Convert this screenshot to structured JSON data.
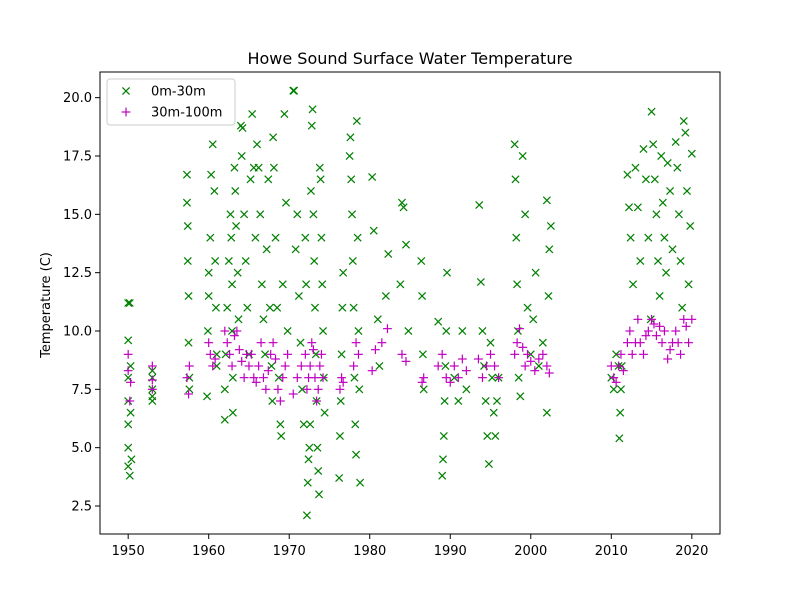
{
  "chart_data": {
    "type": "scatter",
    "title": "Howe Sound Surface Water Temperature",
    "xlabel": "",
    "ylabel": "Temperature (C)",
    "xlim": [
      1946.5,
      2023.5
    ],
    "ylim": [
      1.3,
      21.1
    ],
    "xticks": [
      1950,
      1960,
      1970,
      1980,
      1990,
      2000,
      2010,
      2020
    ],
    "yticks": [
      2.5,
      5.0,
      7.5,
      10.0,
      12.5,
      15.0,
      17.5,
      20.0
    ],
    "xtick_labels": [
      "1950",
      "1960",
      "1970",
      "1980",
      "1990",
      "2000",
      "2010",
      "2020"
    ],
    "ytick_labels": [
      "2.5",
      "5.0",
      "7.5",
      "10.0",
      "12.5",
      "15.0",
      "17.5",
      "20.0"
    ],
    "grid": false,
    "legend_position": "top-left",
    "series": [
      {
        "name": "0m-30m",
        "marker": "x",
        "color": "#008000",
        "x": [
          1950,
          1950,
          1950,
          1950,
          1950,
          1950,
          1950,
          1950.2,
          1950.2,
          1950.3,
          1950.3,
          1950.4,
          1953,
          1953,
          1953,
          1953,
          1953,
          1957.3,
          1957.3,
          1957.4,
          1957.4,
          1957.5,
          1957.5,
          1957.6,
          1957.6,
          1959.8,
          1959.9,
          1960,
          1960,
          1960.2,
          1960.3,
          1960.5,
          1960.7,
          1960.8,
          1960.9,
          1961,
          1961,
          1962,
          1962,
          1962.1,
          1962.3,
          1962.5,
          1962.7,
          1962.8,
          1962.9,
          1962.9,
          1963,
          1963,
          1963.2,
          1963.3,
          1963.4,
          1963.6,
          1963.7,
          1964,
          1964.1,
          1964.2,
          1964.4,
          1964.6,
          1964.8,
          1965,
          1965.2,
          1965.4,
          1965.6,
          1965.8,
          1966,
          1966.2,
          1966.4,
          1966.6,
          1966.8,
          1967,
          1967.2,
          1967.4,
          1967.6,
          1967.8,
          1967.9,
          1968,
          1968.1,
          1968.3,
          1968.5,
          1968.7,
          1968.9,
          1969,
          1969.2,
          1969.4,
          1969.6,
          1969.8,
          1970.5,
          1970.6,
          1970.8,
          1971,
          1971.2,
          1971.4,
          1971.6,
          1971.8,
          1972,
          1972.1,
          1972.2,
          1972.3,
          1972.4,
          1972.5,
          1972.6,
          1972.7,
          1972.8,
          1972.9,
          1973,
          1973.1,
          1973.2,
          1973.3,
          1973.4,
          1973.5,
          1973.6,
          1973.7,
          1973.8,
          1973.9,
          1974,
          1974.1,
          1974.2,
          1974.3,
          1974.4,
          1976.2,
          1976.3,
          1976.4,
          1976.5,
          1976.6,
          1976.7,
          1977.5,
          1977.6,
          1977.7,
          1977.8,
          1977.9,
          1978,
          1978.1,
          1978.2,
          1978.3,
          1978.4,
          1978.5,
          1978.6,
          1978.7,
          1978.8,
          1980.3,
          1980.5,
          1981,
          1981.2,
          1982,
          1982.3,
          1983.8,
          1984,
          1984.2,
          1984.5,
          1984.8,
          1986.4,
          1986.5,
          1986.6,
          1986.7,
          1988.5,
          1989,
          1989.1,
          1989.2,
          1989.3,
          1989.4,
          1989.5,
          1989.6,
          1990.5,
          1991,
          1991.5,
          1992,
          1993.6,
          1993.8,
          1994,
          1994.2,
          1994.4,
          1994.6,
          1994.8,
          1995,
          1995.2,
          1995.4,
          1995.6,
          1995.8,
          1996,
          1998,
          1998.1,
          1998.2,
          1998.3,
          1998.4,
          1998.5,
          1998.7,
          1999,
          1999.3,
          1999.6,
          2000,
          2000.3,
          2000.6,
          2001,
          2001.5,
          2002,
          2002,
          2002.2,
          2002.3,
          2002.5,
          2010,
          2010.3,
          2010.6,
          2010.9,
          2011,
          2011.1,
          2011.2,
          2011.3,
          2012,
          2012.2,
          2012.4,
          2012.7,
          2013,
          2013.3,
          2013.6,
          2014,
          2014.3,
          2014.6,
          2014.9,
          2015,
          2015.2,
          2015.4,
          2015.6,
          2015.8,
          2016,
          2016.2,
          2016.4,
          2016.6,
          2016.8,
          2017,
          2017.3,
          2017.6,
          2018,
          2018.2,
          2018.4,
          2018.6,
          2018.8,
          2019,
          2019.2,
          2019.4,
          2019.6,
          2019.8,
          2020
        ],
        "y": [
          11.2,
          9.6,
          8.0,
          7.0,
          6.0,
          5.0,
          4.2,
          3.8,
          11.2,
          8.5,
          6.5,
          4.5,
          7.0,
          7.5,
          8.0,
          7.2,
          8.3,
          16.7,
          15.5,
          14.5,
          13.0,
          11.5,
          9.5,
          8.0,
          7.5,
          7.2,
          10.0,
          11.5,
          12.5,
          14.0,
          16.7,
          18.0,
          16.0,
          13.0,
          11.0,
          9.0,
          8.5,
          6.2,
          7.5,
          9.0,
          11.0,
          13.0,
          15.0,
          14.0,
          12.0,
          10.0,
          8.0,
          6.5,
          17.0,
          16.0,
          14.5,
          12.5,
          10.5,
          18.8,
          17.5,
          18.7,
          15.0,
          13.0,
          11.0,
          9.0,
          16.5,
          19.3,
          17.0,
          14.0,
          18.0,
          17.0,
          15.0,
          12.0,
          10.5,
          9.0,
          13.5,
          16.5,
          11.0,
          8.5,
          7.0,
          18.3,
          17.0,
          14.0,
          11.0,
          8.0,
          6.0,
          5.5,
          12.0,
          19.3,
          15.5,
          10.0,
          20.3,
          20.3,
          13.5,
          15.0,
          11.5,
          9.5,
          7.5,
          6.0,
          14.0,
          12.0,
          2.1,
          3.5,
          4.5,
          5.0,
          6.0,
          16.0,
          18.8,
          19.5,
          15.0,
          13.0,
          11.0,
          9.0,
          7.0,
          5.0,
          4.0,
          3.0,
          17.0,
          16.5,
          14.0,
          12.0,
          10.0,
          8.0,
          6.5,
          3.7,
          5.5,
          7.0,
          9.0,
          11.0,
          12.5,
          17.5,
          18.3,
          16.5,
          15.0,
          13.0,
          11.0,
          8.0,
          6.0,
          4.7,
          19.0,
          14.0,
          10.0,
          7.5,
          3.5,
          16.6,
          14.3,
          10.5,
          8.5,
          11.5,
          13.3,
          12.0,
          15.5,
          15.3,
          13.7,
          10.0,
          13.0,
          11.5,
          9.0,
          7.5,
          10.4,
          3.8,
          4.5,
          5.5,
          7.0,
          8.5,
          10.0,
          12.5,
          8.0,
          7.0,
          10.0,
          7.5,
          15.4,
          12.1,
          10.0,
          8.5,
          7.0,
          5.5,
          4.3,
          9.5,
          8.0,
          6.5,
          5.5,
          7.0,
          8.0,
          18.0,
          16.5,
          14.0,
          12.0,
          10.0,
          8.0,
          7.2,
          17.5,
          15.0,
          11.0,
          9.0,
          10.5,
          12.5,
          8.5,
          9.5,
          15.6,
          6.5,
          11.5,
          13.5,
          14.5,
          8.0,
          7.5,
          9.0,
          8.5,
          5.4,
          6.5,
          7.5,
          8.5,
          16.7,
          15.3,
          14.0,
          12.0,
          17.0,
          15.3,
          13.0,
          17.8,
          16.5,
          14.0,
          10.5,
          19.4,
          18.0,
          16.5,
          15.0,
          13.0,
          11.5,
          17.5,
          15.5,
          14.0,
          12.5,
          17.2,
          16.0,
          13.5,
          18.1,
          17.0,
          15.0,
          13.0,
          11.0,
          19.0,
          18.5,
          16.0,
          12.0,
          14.5,
          17.6
        ]
      },
      {
        "name": "30m-100m",
        "marker": "+",
        "color": "#c000c0",
        "x": [
          1950,
          1950,
          1950.2,
          1950.3,
          1953,
          1953,
          1953,
          1957.3,
          1957.5,
          1957.6,
          1960,
          1960.2,
          1960.5,
          1960.8,
          1962,
          1962.3,
          1962.6,
          1962.9,
          1963.2,
          1963.5,
          1963.8,
          1964.1,
          1964.4,
          1964.7,
          1965,
          1965.3,
          1965.6,
          1965.9,
          1966.2,
          1966.5,
          1966.8,
          1967.1,
          1967.4,
          1967.7,
          1968,
          1968.3,
          1968.6,
          1968.9,
          1969.2,
          1969.5,
          1969.8,
          1970.5,
          1971,
          1971.5,
          1972,
          1972.2,
          1972.4,
          1972.6,
          1972.8,
          1973,
          1973.2,
          1973.4,
          1973.6,
          1973.8,
          1974,
          1974.2,
          1976.3,
          1976.5,
          1976.7,
          1978,
          1978.3,
          1978.6,
          1980.3,
          1980.7,
          1981.5,
          1982.2,
          1984,
          1984.5,
          1986.5,
          1986.7,
          1988.5,
          1989,
          1989.5,
          1990,
          1990.5,
          1991,
          1991.5,
          1992,
          1993.5,
          1994,
          1994.5,
          1995,
          1995.5,
          1996,
          1998,
          1998.3,
          1998.6,
          1999,
          1999.3,
          1999.6,
          2000,
          2000.5,
          2001,
          2001.5,
          2002,
          2002.3,
          2010,
          2010.3,
          2010.6,
          2010.9,
          2011.2,
          2011.5,
          2012,
          2012.3,
          2012.6,
          2013,
          2013.3,
          2013.6,
          2014,
          2014.3,
          2014.6,
          2015,
          2015.3,
          2015.6,
          2016,
          2016.3,
          2016.6,
          2017,
          2017.3,
          2017.6,
          2018,
          2018.3,
          2018.6,
          2019,
          2019.3,
          2019.6,
          2020
        ],
        "y": [
          9.0,
          8.3,
          7.0,
          7.8,
          8.5,
          7.9,
          7.5,
          8.0,
          7.3,
          8.5,
          9.5,
          9.0,
          8.5,
          8.8,
          10.0,
          9.5,
          9.0,
          8.5,
          9.8,
          10.0,
          9.2,
          8.7,
          8.0,
          9.0,
          8.5,
          9.0,
          8.0,
          7.8,
          8.5,
          9.5,
          8.0,
          7.5,
          8.3,
          9.0,
          9.5,
          8.8,
          7.5,
          7.0,
          8.0,
          8.5,
          9.0,
          7.3,
          8.0,
          8.5,
          9.0,
          7.5,
          8.0,
          8.5,
          9.5,
          9.2,
          8.0,
          7.0,
          7.5,
          8.5,
          9.0,
          8.0,
          7.5,
          8.0,
          7.8,
          8.5,
          9.5,
          9.0,
          8.3,
          9.2,
          9.5,
          10.1,
          9.0,
          8.7,
          7.8,
          8.0,
          8.5,
          9.0,
          8.0,
          7.8,
          8.5,
          8.0,
          8.8,
          8.3,
          8.8,
          8.0,
          8.5,
          9.0,
          8.5,
          8.0,
          9.0,
          9.5,
          10.1,
          9.3,
          8.5,
          9.0,
          8.7,
          8.3,
          8.8,
          9.0,
          8.5,
          8.2,
          8.5,
          8.0,
          7.8,
          8.5,
          9.0,
          8.3,
          9.5,
          10.0,
          9.0,
          9.5,
          10.5,
          9.5,
          9.0,
          9.8,
          10.0,
          10.5,
          10.3,
          9.8,
          10.2,
          9.5,
          10.0,
          8.8,
          9.2,
          9.5,
          10.0,
          9.5,
          9.0,
          10.5,
          10.2,
          9.5,
          10.5
        ]
      }
    ]
  }
}
